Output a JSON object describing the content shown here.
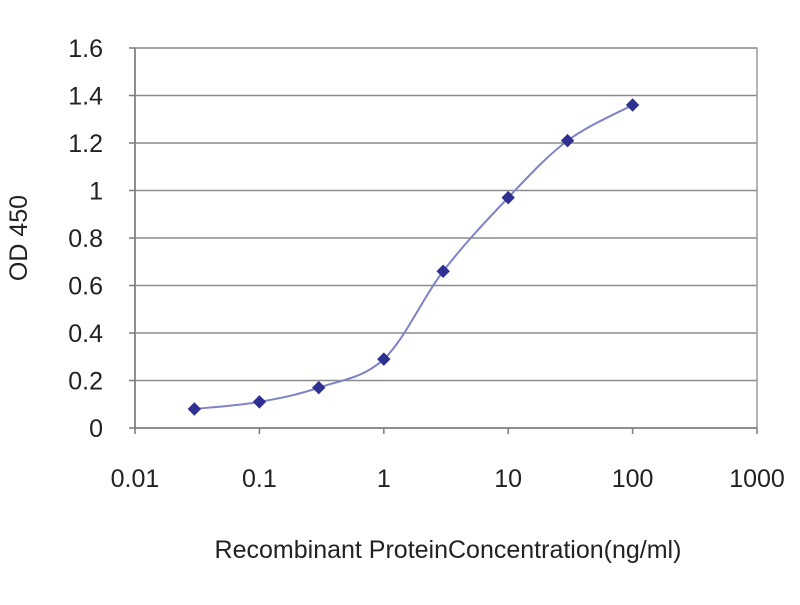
{
  "chart_data": {
    "type": "line",
    "title": "",
    "xlabel": "Recombinant ProteinConcentration(ng/ml)",
    "ylabel": "OD 450",
    "x_scale": "log",
    "xlim": [
      0.01,
      1000
    ],
    "ylim": [
      0,
      1.6
    ],
    "x_ticks": [
      "0.01",
      "0.1",
      "1",
      "10",
      "100",
      "1000"
    ],
    "y_ticks": [
      "0",
      "0.2",
      "0.4",
      "0.6",
      "0.8",
      "1",
      "1.2",
      "1.4",
      "1.6"
    ],
    "grid": "horizontal",
    "legend": "none",
    "series": [
      {
        "color": "#2e3192",
        "marker": "diamond",
        "points": [
          {
            "x": 0.03,
            "y": 0.08
          },
          {
            "x": 0.1,
            "y": 0.11
          },
          {
            "x": 0.3,
            "y": 0.17
          },
          {
            "x": 1,
            "y": 0.29
          },
          {
            "x": 3,
            "y": 0.66
          },
          {
            "x": 10,
            "y": 0.97
          },
          {
            "x": 30,
            "y": 1.21
          },
          {
            "x": 100,
            "y": 1.36
          }
        ]
      }
    ]
  }
}
